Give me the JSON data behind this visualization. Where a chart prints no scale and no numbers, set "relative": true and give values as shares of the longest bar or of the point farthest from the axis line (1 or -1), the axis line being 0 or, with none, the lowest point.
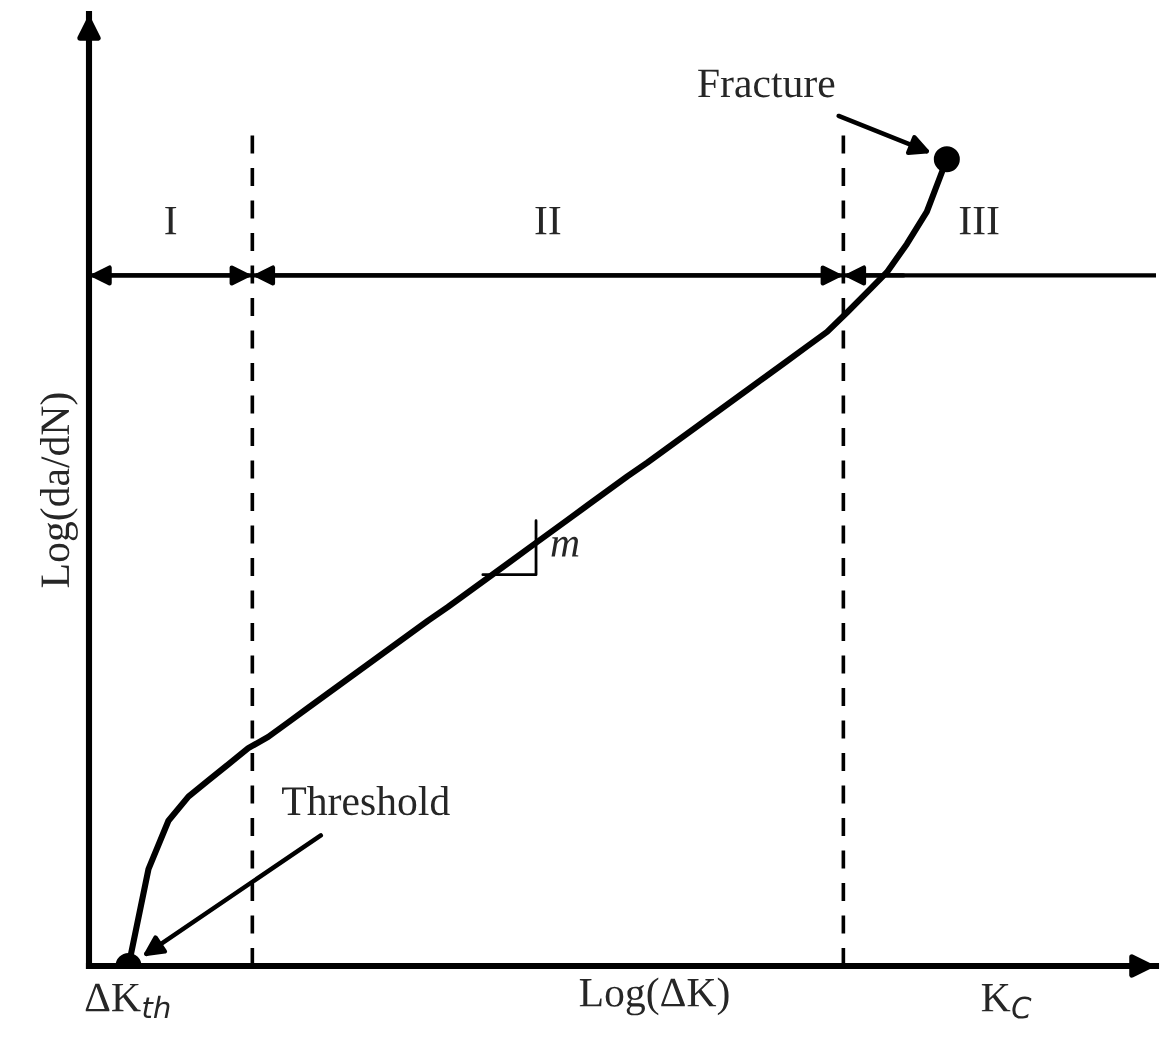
{
  "chart_data": {
    "type": "line",
    "relative": true,
    "xlabel": "Log(ΔK)",
    "ylabel": "Log(da/dN)",
    "categories": [
      "ΔK$_{th}$",
      null,
      null,
      null,
      null,
      null,
      null,
      null,
      null,
      null,
      null,
      null,
      null,
      null,
      null,
      null,
      null,
      null,
      null,
      null,
      null,
      null,
      null,
      null,
      null,
      null,
      null,
      null,
      null,
      null,
      null,
      null,
      null,
      null,
      null,
      null,
      null,
      null,
      null,
      null,
      null,
      null,
      null,
      null,
      "K$_{C}$"
    ],
    "series": [
      {
        "color": "#000000",
        "values": [
          0,
          0.12,
          0.18,
          0.21,
          0.23,
          0.25,
          0.27,
          0.284,
          0.302,
          0.32,
          0.338,
          0.356,
          0.374,
          0.392,
          0.41,
          0.428,
          0.445,
          0.463,
          0.481,
          0.499,
          0.517,
          0.535,
          0.553,
          0.571,
          0.589,
          0.607,
          0.624,
          0.642,
          0.66,
          0.678,
          0.696,
          0.714,
          0.732,
          0.75,
          0.768,
          0.786,
          0.81,
          0.835,
          0.86,
          0.895,
          0.935,
          1.0,
          null,
          null,
          null
        ]
      },
      {
        "type": "scatter",
        "color": "#000000",
        "values": [
          0,
          null,
          null,
          null,
          null,
          null,
          null,
          null,
          null,
          null,
          null,
          null,
          null,
          null,
          null,
          null,
          null,
          null,
          null,
          null,
          null,
          null,
          null,
          null,
          null,
          null,
          null,
          null,
          null,
          null,
          null,
          null,
          null,
          null,
          null,
          null,
          null,
          null,
          null,
          null,
          null,
          1.0,
          null,
          null,
          null
        ]
      }
    ],
    "ref_lines": [
      {
        "axis": "y",
        "value": 0.856,
        "color": "#000000",
        "line_style": "solid"
      }
    ],
    "annotations": [
      "Fracture",
      "Threshold",
      "m",
      "I",
      "II",
      "III"
    ],
    "grid": false,
    "legend": false
  }
}
